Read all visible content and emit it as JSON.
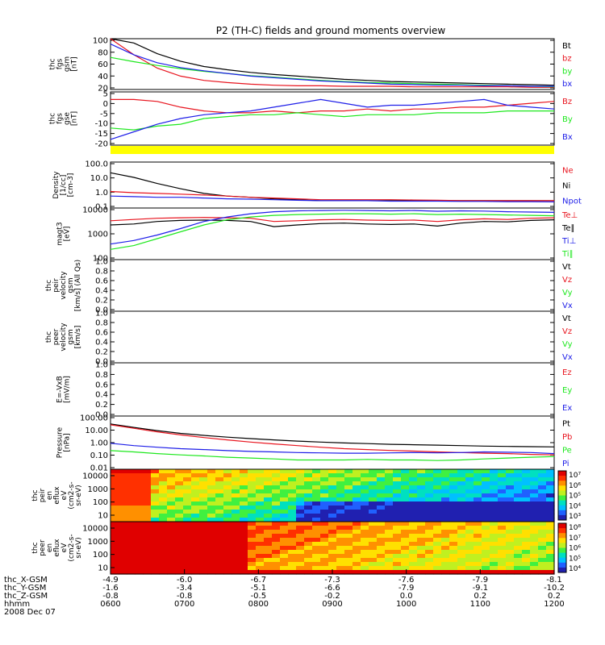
{
  "title": "P2 (TH-C) fields and ground moments overview",
  "colors": {
    "black": "#000000",
    "red": "#e8141e",
    "green": "#1ee81e",
    "blue": "#1e1ee8",
    "yellow": "#ffff00"
  },
  "panels": [
    {
      "id": "fgs-gsm",
      "ylabel": [
        "thc",
        "fgs",
        "gsm",
        "[nT]"
      ],
      "yticks": [
        "100",
        "80",
        "60",
        "40",
        "20"
      ],
      "ylim": [
        5,
        100
      ],
      "scale": "linear",
      "legend": [
        {
          "label": "Bt",
          "color": "#000000"
        },
        {
          "label": "bz",
          "color": "#e8141e"
        },
        {
          "label": "by",
          "color": "#1ee81e"
        },
        {
          "label": "bx",
          "color": "#1e1ee8"
        }
      ],
      "series": [
        {
          "name": "Bt",
          "color": "#000000",
          "values": [
            110,
            92,
            72,
            58,
            48,
            42,
            37,
            33,
            30,
            27,
            24,
            22,
            20,
            19,
            18,
            17,
            16,
            15,
            14,
            13
          ]
        },
        {
          "name": "bz",
          "color": "#e8141e",
          "values": [
            100,
            70,
            45,
            30,
            22,
            18,
            15,
            13,
            12,
            12,
            11,
            11,
            11,
            10,
            10,
            10,
            10,
            10,
            9,
            9
          ]
        },
        {
          "name": "by",
          "color": "#1ee81e",
          "values": [
            65,
            57,
            50,
            44,
            39,
            35,
            31,
            28,
            25,
            22,
            20,
            18,
            17,
            16,
            15,
            14,
            13,
            12,
            11,
            10
          ]
        },
        {
          "name": "bx",
          "color": "#1e1ee8",
          "values": [
            90,
            70,
            55,
            46,
            40,
            35,
            30,
            27,
            24,
            21,
            19,
            17,
            15,
            14,
            13,
            13,
            12,
            12,
            11,
            11
          ]
        }
      ]
    },
    {
      "id": "fgs-gse",
      "ylabel": [
        "thc",
        "fgs",
        "gse",
        "[nT]"
      ],
      "yticks": [
        "5",
        "0",
        "-5",
        "-10",
        "-15",
        "-20"
      ],
      "ylim": [
        -21,
        7
      ],
      "scale": "linear",
      "legend": [
        {
          "label": "Bz",
          "color": "#e8141e"
        },
        {
          "label": "By",
          "color": "#1ee81e"
        },
        {
          "label": "Bx",
          "color": "#1e1ee8"
        }
      ],
      "series": [
        {
          "name": "Bz",
          "color": "#e8141e",
          "values": [
            3,
            3,
            2,
            -1,
            -3,
            -4,
            -4,
            -3,
            -4,
            -3,
            -3,
            -2,
            -3,
            -2,
            -2,
            -1,
            -1,
            0,
            1,
            2
          ]
        },
        {
          "name": "By",
          "color": "#1ee81e",
          "values": [
            -12,
            -13,
            -11,
            -10,
            -7,
            -6,
            -5,
            -5,
            -4,
            -5,
            -6,
            -5,
            -5,
            -5,
            -4,
            -4,
            -4,
            -3,
            -3,
            -3
          ]
        },
        {
          "name": "Bx",
          "color": "#1e1ee8",
          "values": [
            -18,
            -14,
            -10,
            -7,
            -5,
            -4,
            -3,
            -1,
            1,
            3,
            1,
            -1,
            0,
            0,
            1,
            2,
            3,
            0,
            -1,
            -2
          ]
        }
      ]
    },
    {
      "id": "moments",
      "ylabel": [
        "Density",
        "[1/cc]",
        "[cm-3]"
      ],
      "yticks": [
        "100.0",
        "10.0",
        "1.0",
        "0.1"
      ],
      "ylim": [
        0.1,
        100
      ],
      "scale": "log",
      "legend": [
        {
          "label": "Ne",
          "color": "#e8141e"
        },
        {
          "label": "Ni",
          "color": "#000000"
        },
        {
          "label": "Npot",
          "color": "#1e1ee8"
        }
      ],
      "series": [
        {
          "name": "Ni",
          "color": "#000000",
          "values": [
            20,
            10,
            4,
            1.8,
            0.9,
            0.6,
            0.5,
            0.4,
            0.35,
            0.3,
            0.3,
            0.3,
            0.3,
            0.3,
            0.3,
            0.3,
            0.3,
            0.3,
            0.3,
            0.3
          ]
        },
        {
          "name": "Ne",
          "color": "#e8141e",
          "values": [
            1.2,
            1.0,
            0.9,
            0.8,
            0.7,
            0.6,
            0.5,
            0.45,
            0.4,
            0.35,
            0.35,
            0.35,
            0.35,
            0.33,
            0.32,
            0.3,
            0.3,
            0.3,
            0.3,
            0.3
          ]
        },
        {
          "name": "Npot",
          "color": "#1e1ee8",
          "values": [
            0.6,
            0.55,
            0.5,
            0.5,
            0.45,
            0.4,
            0.38,
            0.35,
            0.32,
            0.3,
            0.3,
            0.3,
            0.28,
            0.28,
            0.28,
            0.27,
            0.27,
            0.26,
            0.26,
            0.25
          ]
        }
      ]
    },
    {
      "id": "temperature",
      "ylabel": [
        "magt3",
        "[eV]"
      ],
      "yticks": [
        "10000",
        "1000",
        "100"
      ],
      "ylim": [
        100,
        10000
      ],
      "scale": "log",
      "legend": [
        {
          "label": "Te⊥",
          "color": "#e8141e"
        },
        {
          "label": "Te∥",
          "color": "#000000"
        },
        {
          "label": "Ti⊥",
          "color": "#1e1ee8"
        },
        {
          "label": "Ti∥",
          "color": "#1ee81e"
        }
      ],
      "series": [
        {
          "name": "Te⊥",
          "color": "#e8141e",
          "values": [
            3200,
            3600,
            4000,
            4200,
            4300,
            4200,
            4000,
            3000,
            3200,
            3500,
            3600,
            3400,
            3300,
            3400,
            3000,
            3500,
            3800,
            3600,
            4000,
            4200
          ]
        },
        {
          "name": "Te∥",
          "color": "#000000",
          "values": [
            2200,
            2400,
            3000,
            3300,
            3400,
            3300,
            3000,
            1900,
            2200,
            2500,
            2600,
            2400,
            2300,
            2400,
            2000,
            2600,
            3000,
            2900,
            3300,
            3500
          ]
        },
        {
          "name": "Ti⊥",
          "color": "#1e1ee8",
          "values": [
            400,
            550,
            900,
            1600,
            3000,
            4500,
            6000,
            7200,
            7800,
            8000,
            8200,
            8000,
            7800,
            8000,
            7500,
            7800,
            7600,
            7200,
            7000,
            6800
          ]
        },
        {
          "name": "Ti∥",
          "color": "#1ee81e",
          "values": [
            250,
            350,
            650,
            1200,
            2200,
            3500,
            4500,
            5200,
            5600,
            5800,
            6000,
            6000,
            5800,
            6000,
            5600,
            5800,
            5600,
            5400,
            5200,
            5000
          ]
        }
      ]
    },
    {
      "id": "peir-velocity",
      "ylabel": [
        "thc",
        "peir",
        "velocity",
        "gsm",
        "[km/s] (All Qs)"
      ],
      "yticks": [
        "1.0",
        "0.8",
        "0.6",
        "0.4",
        "0.2",
        "0.0"
      ],
      "ylim": [
        0,
        1
      ],
      "scale": "linear",
      "legend": [
        {
          "label": "Vt",
          "color": "#000000"
        },
        {
          "label": "Vz",
          "color": "#e8141e"
        },
        {
          "label": "Vy",
          "color": "#1ee81e"
        },
        {
          "label": "Vx",
          "color": "#1e1ee8"
        }
      ],
      "series": []
    },
    {
      "id": "peer-velocity",
      "ylabel": [
        "thc",
        "peer",
        "velocity",
        "gsm",
        "[km/s]"
      ],
      "yticks": [
        "1.0",
        "0.8",
        "0.6",
        "0.4",
        "0.2",
        "0.0"
      ],
      "ylim": [
        0,
        1
      ],
      "scale": "linear",
      "legend": [
        {
          "label": "Vt",
          "color": "#000000"
        },
        {
          "label": "Vz",
          "color": "#e8141e"
        },
        {
          "label": "Vy",
          "color": "#1ee81e"
        },
        {
          "label": "Vx",
          "color": "#1e1ee8"
        }
      ],
      "series": []
    },
    {
      "id": "efield",
      "ylabel": [
        "E=-VxB",
        "[mV/m]"
      ],
      "yticks": [
        "1.0",
        "0.8",
        "0.6",
        "0.4",
        "0.2",
        "0.0"
      ],
      "ylim": [
        0,
        1
      ],
      "scale": "linear",
      "legend": [
        {
          "label": "Ez",
          "color": "#e8141e"
        },
        {
          "label": "Ey",
          "color": "#1ee81e"
        },
        {
          "label": "Ex",
          "color": "#1e1ee8"
        }
      ],
      "series": []
    },
    {
      "id": "pressure",
      "ylabel": [
        "Pressure",
        "[nPa]"
      ],
      "yticks": [
        "100.00",
        "10.00",
        "1.00",
        "0.10",
        "0.01"
      ],
      "ylim": [
        0.01,
        100
      ],
      "scale": "log",
      "legend": [
        {
          "label": "Pt",
          "color": "#000000"
        },
        {
          "label": "Pb",
          "color": "#e8141e"
        },
        {
          "label": "Pe",
          "color": "#1ee81e"
        },
        {
          "label": "Pi",
          "color": "#1e1ee8"
        }
      ],
      "series": [
        {
          "name": "Pt",
          "color": "#000000",
          "values": [
            25,
            14,
            8,
            5,
            3.5,
            2.6,
            2.0,
            1.6,
            1.3,
            1.1,
            0.95,
            0.85,
            0.75,
            0.7,
            0.65,
            0.6,
            0.55,
            0.52,
            0.5,
            0.48
          ]
        },
        {
          "name": "Pb",
          "color": "#e8141e",
          "values": [
            22,
            12,
            6.5,
            3.8,
            2.4,
            1.6,
            1.1,
            0.8,
            0.6,
            0.45,
            0.35,
            0.3,
            0.26,
            0.23,
            0.2,
            0.18,
            0.16,
            0.15,
            0.13,
            0.12
          ]
        },
        {
          "name": "Pe",
          "color": "#1ee81e",
          "values": [
            0.25,
            0.2,
            0.15,
            0.12,
            0.1,
            0.08,
            0.07,
            0.06,
            0.05,
            0.05,
            0.05,
            0.055,
            0.05,
            0.05,
            0.045,
            0.05,
            0.06,
            0.07,
            0.08,
            0.09
          ]
        },
        {
          "name": "Pi",
          "color": "#1e1ee8",
          "values": [
            0.9,
            0.6,
            0.45,
            0.35,
            0.3,
            0.25,
            0.22,
            0.2,
            0.18,
            0.17,
            0.16,
            0.16,
            0.17,
            0.18,
            0.17,
            0.18,
            0.2,
            0.19,
            0.18,
            0.15
          ]
        }
      ]
    }
  ],
  "spectrograms": [
    {
      "id": "peir-spec",
      "ylabel": [
        "thc",
        "peir",
        "en",
        "eflux",
        "eV",
        "(cm2-s-",
        "sr-eV)"
      ],
      "yticks": [
        "10000",
        "1000",
        "100",
        "10"
      ],
      "colorbar_ticks": [
        "10⁷",
        "10⁶",
        "10⁵",
        "10⁴",
        "10³"
      ]
    },
    {
      "id": "peer-spec",
      "ylabel": [
        "thc",
        "peer",
        "en",
        "eflux",
        "eV",
        "(cm2-s-",
        "sr-eV)"
      ],
      "yticks": [
        "10000",
        "1000",
        "100",
        "10"
      ],
      "colorbar_ticks": [
        "10⁸",
        "10⁷",
        "10⁶",
        "10⁵",
        "10⁴"
      ]
    }
  ],
  "xaxis": {
    "row_labels": [
      "thc_X-GSM",
      "thc_Y-GSM",
      "thc_Z-GSM",
      "hhmm",
      "2008 Dec 07"
    ],
    "ticks": [
      {
        "values": [
          "-4.9",
          "-1.6",
          "-0.8",
          "0600"
        ]
      },
      {
        "values": [
          "-6.0",
          "-3.4",
          "-0.8",
          "0700"
        ]
      },
      {
        "values": [
          "-6.7",
          "-5.1",
          "-0.5",
          "0800"
        ]
      },
      {
        "values": [
          "-7.3",
          "-6.6",
          "-0.2",
          "0900"
        ]
      },
      {
        "values": [
          "-7.6",
          "-7.9",
          "0.0",
          "1000"
        ]
      },
      {
        "values": [
          "-7.9",
          "-9.1",
          "0.2",
          "1100"
        ]
      },
      {
        "values": [
          "-8.1",
          "-10.2",
          "0.2",
          "1200"
        ]
      }
    ]
  }
}
